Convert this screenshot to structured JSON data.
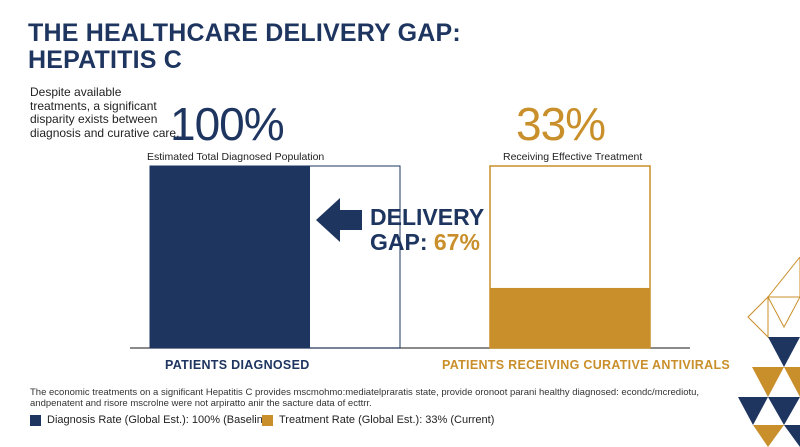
{
  "title": {
    "line1": "THE HEALTHCARE DELIVERY GAP:",
    "line2": "HEPATITIS C"
  },
  "intro": "Despite available treatments, a significant disparity exists between diagnosis and curative care.",
  "stats": {
    "diagnosed": {
      "value": "100%",
      "caption": "Estimated Total Diagnosed Population"
    },
    "treated": {
      "value": "33%",
      "caption": "Receiving Effective Treatment"
    }
  },
  "gap": {
    "label": "DELIVERY",
    "label2": "GAP:",
    "value": "67%"
  },
  "footnote": "The economic treatments on a significant Hepatitis C provides mscmohmo:mediatelpraratis state, provide oronoot parani healthy diagnosed: econdc/mcrediotu, andpenatent and risore mscrolne were not arpiratto anir the sacture data of ecttrr.",
  "legend": [
    {
      "label": "Diagnosis Rate (Global Est.): 100% (Baseline)",
      "color": "#1e3560"
    },
    {
      "label": "Treatment Rate (Global Est.): 33% (Current)",
      "color": "#c98f2a"
    }
  ],
  "colors": {
    "navy": "#1e3560",
    "gold": "#c98f2a"
  },
  "chart_data": {
    "type": "bar",
    "categories": [
      "PATIENTS DIAGNOSED",
      "PATIENTS RECEIVING CURATIVE ANTIVIRALS"
    ],
    "values": [
      100,
      33
    ],
    "ylim": [
      0,
      100
    ],
    "colors": [
      "#1e3560",
      "#c98f2a"
    ]
  }
}
